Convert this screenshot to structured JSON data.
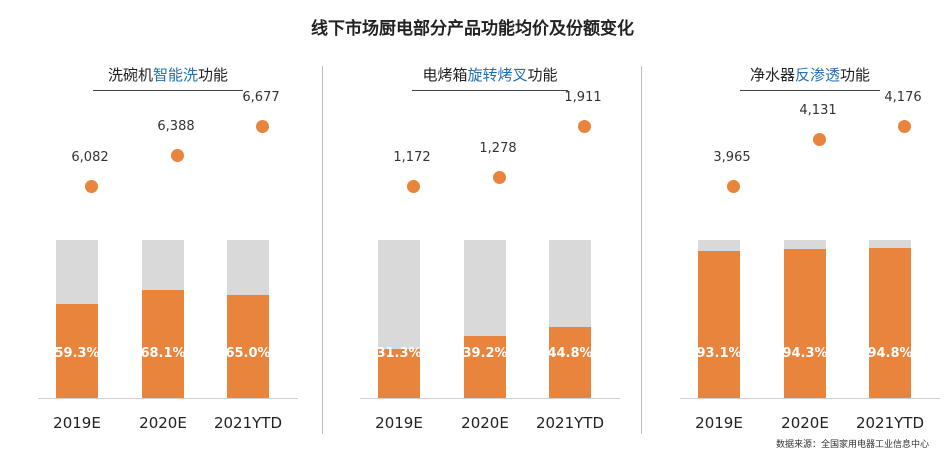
{
  "title": "线下市场厨电部分产品功能均价及份额变化",
  "source": "数据来源：全国家用电器工业信息中心",
  "colors": {
    "share": "#e8843b",
    "rest": "#d9d9d9",
    "highlight": "#1f6fb5"
  },
  "chart_data": [
    {
      "type": "bar",
      "title_prefix": "洗碗机",
      "title_highlight": "智能洗",
      "title_suffix": "功能",
      "categories": [
        "2019E",
        "2020E",
        "2021YTD"
      ],
      "share_values": [
        59.3,
        68.1,
        65.0
      ],
      "share_labels": [
        "59.3%",
        "68.1%",
        "65.0%"
      ],
      "price_values": [
        6082,
        6388,
        6677
      ],
      "price_labels": [
        "6,082",
        "6,388",
        "6,677"
      ],
      "ylim": [
        0,
        100
      ]
    },
    {
      "type": "bar",
      "title_prefix": "电烤箱",
      "title_highlight": "旋转烤叉",
      "title_suffix": "功能",
      "categories": [
        "2019E",
        "2020E",
        "2021YTD"
      ],
      "share_values": [
        31.3,
        39.2,
        44.8
      ],
      "share_labels": [
        "31.3%",
        "39.2%",
        "44.8%"
      ],
      "price_values": [
        1172,
        1278,
        1911
      ],
      "price_labels": [
        "1,172",
        "1,278",
        "1,911"
      ],
      "ylim": [
        0,
        100
      ]
    },
    {
      "type": "bar",
      "title_prefix": "净水器",
      "title_highlight": "反渗透",
      "title_suffix": "功能",
      "categories": [
        "2019E",
        "2020E",
        "2021YTD"
      ],
      "share_values": [
        93.1,
        94.3,
        94.8
      ],
      "share_labels": [
        "93.1%",
        "94.3%",
        "94.8%"
      ],
      "price_values": [
        3965,
        4131,
        4176
      ],
      "price_labels": [
        "3,965",
        "4,131",
        "4,176"
      ],
      "ylim": [
        0,
        100
      ]
    }
  ]
}
